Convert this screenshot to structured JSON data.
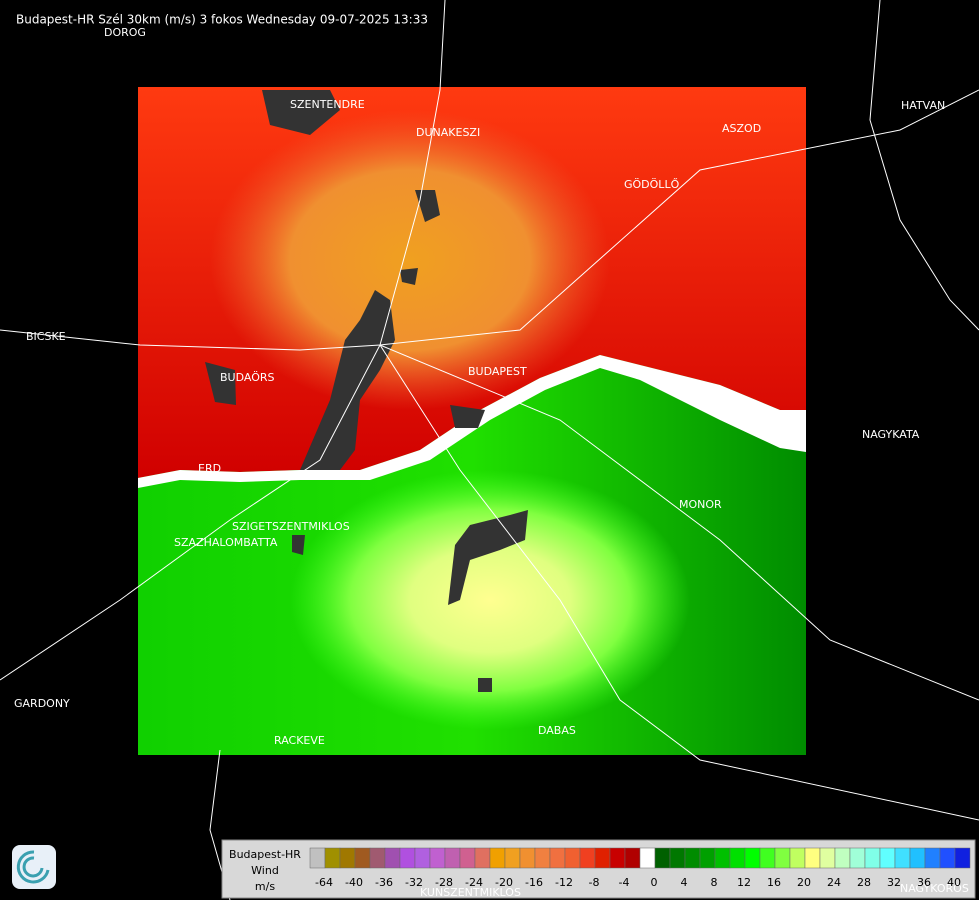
{
  "title": "Budapest-HR Szél 30km (m/s) 3 fokos Wednesday 09-07-2025 13:33",
  "places": [
    "DOROG",
    "SZENTENDRE",
    "DUNAKESZI",
    "ASZOD",
    "HATVAN",
    "GÖDÖLLŐ",
    "BICSKE",
    "BUDAÖRS",
    "BUDAPEST",
    "NAGYKATA",
    "ERD",
    "MONOR",
    "SZIGETSZENTMIKLOS",
    "SZAZHALOMBATTA",
    "GARDONY",
    "RACKEVE",
    "DABAS",
    "KUNSZENTMIKLOS",
    "NAGYKOROS"
  ],
  "legend": {
    "station": "Budapest-HR",
    "quantity": "Wind",
    "unit": "m/s",
    "ticks": [
      -64,
      -40,
      -36,
      -32,
      -28,
      -24,
      -20,
      -16,
      -12,
      -8,
      -4,
      0,
      4,
      8,
      12,
      16,
      20,
      24,
      28,
      32,
      36,
      40
    ],
    "colors": [
      "#c0c0c0",
      "#a09000",
      "#a07800",
      "#a05a20",
      "#a05a70",
      "#a050b0",
      "#b050e0",
      "#b060e0",
      "#c060d0",
      "#c060b0",
      "#d06090",
      "#e07060",
      "#f0a000",
      "#f0a020",
      "#f09030",
      "#f08040",
      "#f07040",
      "#f06030",
      "#f04020",
      "#e02000",
      "#c80000",
      "#b00000",
      "#ffffff",
      "#006000",
      "#007800",
      "#008c00",
      "#00a000",
      "#00c000",
      "#00e000",
      "#00ff00",
      "#40ff20",
      "#80ff40",
      "#c0ff60",
      "#ffff80",
      "#e0ffa0",
      "#c0ffc0",
      "#a0ffd8",
      "#80ffe8",
      "#60ffff",
      "#40e0ff",
      "#20c0ff",
      "#2080ff",
      "#2050ff",
      "#1020e0"
    ]
  }
}
